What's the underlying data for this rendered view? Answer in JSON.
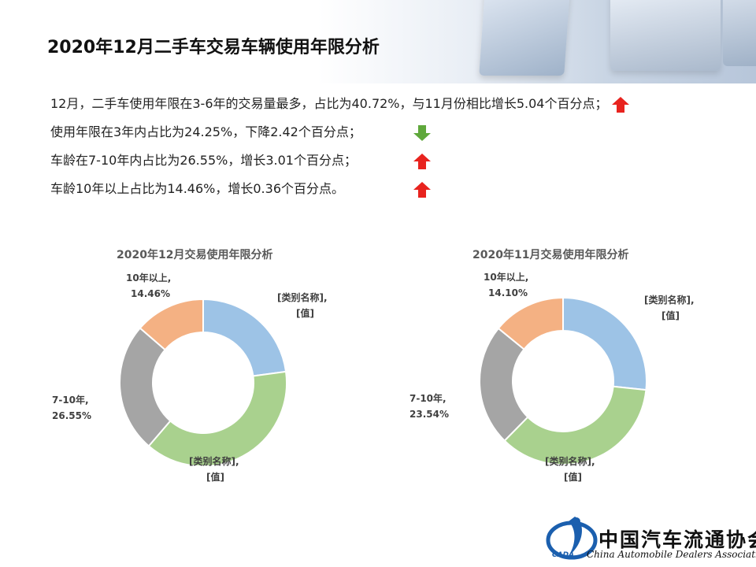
{
  "title": "2020年12月二手车交易车辆使用年限分析",
  "bullets": [
    {
      "text": "12月，二手车使用年限在3-6年的交易量最多，占比为40.72%，与11月份相比增长5.04个百分点；",
      "direction": "up",
      "icon": "up-arrow-icon"
    },
    {
      "text": "使用年限在3年内占比为24.25%，下降2.42个百分点；",
      "direction": "down",
      "icon": "down-arrow-icon"
    },
    {
      "text": "车龄在7-10年内占比为26.55%，增长3.01个百分点；",
      "direction": "up",
      "icon": "up-arrow-icon"
    },
    {
      "text": "车龄10年以上占比为14.46%，增长0.36个百分点。",
      "direction": "up",
      "icon": "up-arrow-icon"
    }
  ],
  "colors": {
    "up": "#e8231e",
    "down": "#5fa83b",
    "slice_blue": "#9dc3e6",
    "slice_green": "#a9d18e",
    "slice_gray": "#a5a5a5",
    "slice_orange": "#f4b183"
  },
  "chart_data": [
    {
      "type": "pie",
      "title": "2020年12月交易使用年限分析",
      "slices": [
        {
          "label_line1": "[类别名称],",
          "label_line2": "[值]",
          "value": 24.25,
          "color": "#9dc3e6"
        },
        {
          "label_line1": "[类别名称],",
          "label_line2": "[值]",
          "value": 40.72,
          "color": "#a9d18e"
        },
        {
          "label_line1": "7-10年,",
          "label_line2": "26.55%",
          "value": 26.55,
          "color": "#a5a5a5"
        },
        {
          "label_line1": "10年以上,",
          "label_line2": "14.46%",
          "value": 14.46,
          "color": "#f4b183"
        }
      ]
    },
    {
      "type": "pie",
      "title": "2020年11月交易使用年限分析",
      "slices": [
        {
          "label_line1": "[类别名称],",
          "label_line2": "[值]",
          "value": 26.67,
          "color": "#9dc3e6"
        },
        {
          "label_line1": "[类别名称],",
          "label_line2": "[值]",
          "value": 35.68,
          "color": "#a9d18e"
        },
        {
          "label_line1": "7-10年,",
          "label_line2": "23.54%",
          "value": 23.54,
          "color": "#a5a5a5"
        },
        {
          "label_line1": "10年以上,",
          "label_line2": "14.10%",
          "value": 14.1,
          "color": "#f4b183"
        }
      ]
    }
  ],
  "logo": {
    "cn": "中国汽车流通协会",
    "en": "China Automobile Dealers Association",
    "abbr": "CADA"
  }
}
